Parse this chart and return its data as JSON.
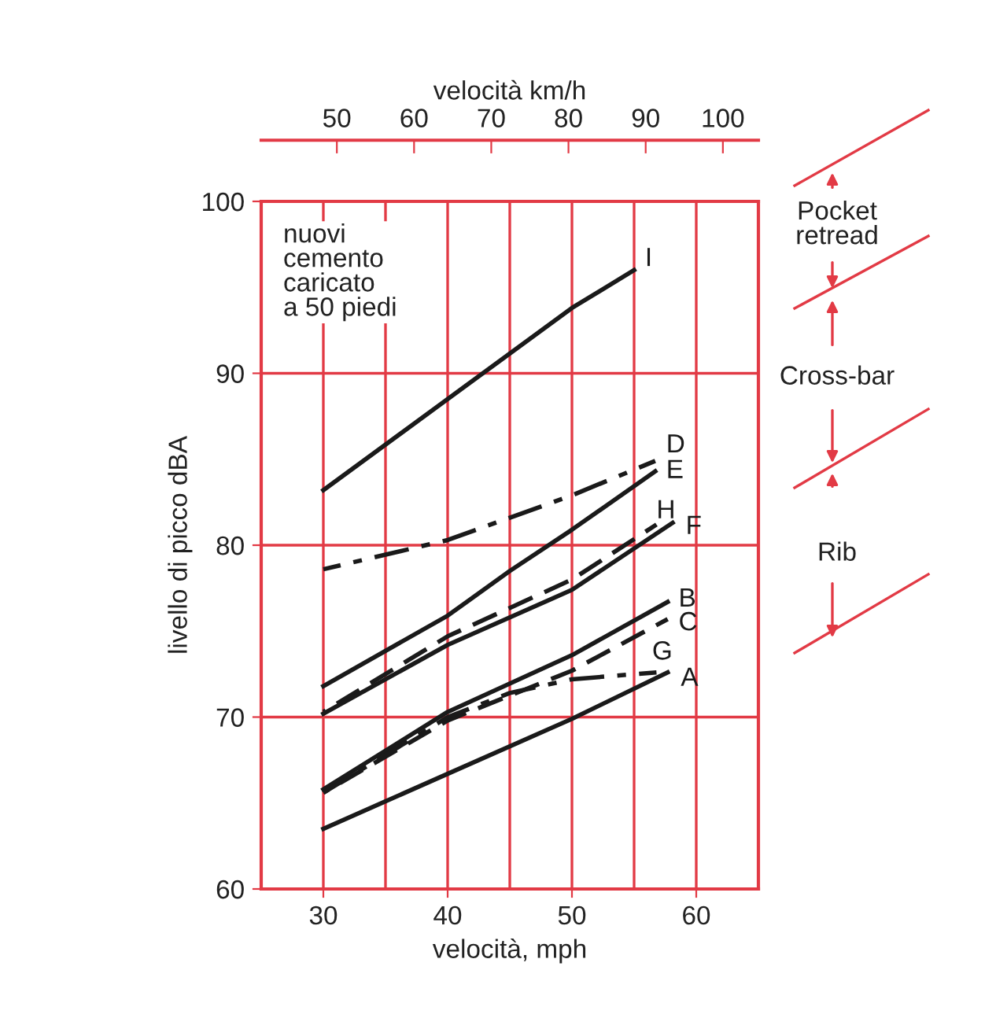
{
  "chart_data": {
    "type": "line",
    "xlabel": "velocità, mph",
    "ylabel": "livello di picco dBA",
    "x2label": "velocità km/h",
    "xlim": [
      25,
      65
    ],
    "xticks": [
      30,
      40,
      50,
      60
    ],
    "ylim": [
      60,
      100
    ],
    "yticks": [
      60,
      70,
      80,
      90,
      100
    ],
    "x2lim": [
      40.2,
      104.6
    ],
    "x2ticks": [
      50,
      60,
      70,
      80,
      90,
      100
    ],
    "grid": true,
    "legend": false,
    "marker": "none",
    "series": [
      {
        "name": "I",
        "color": "#1a1a1a",
        "line_style": "solid",
        "x": [
          30,
          40,
          50,
          55
        ],
        "values": [
          83.2,
          88.5,
          93.8,
          96
        ]
      },
      {
        "name": "D",
        "color": "#1a1a1a",
        "line_style": "dashdot",
        "x": [
          30,
          40,
          50,
          56.7
        ],
        "values": [
          78.6,
          80.3,
          82.9,
          84.9
        ]
      },
      {
        "name": "E",
        "color": "#1a1a1a",
        "line_style": "solid",
        "x": [
          30,
          40,
          45,
          50,
          56.7
        ],
        "values": [
          71.8,
          75.9,
          78.5,
          80.9,
          84.3
        ]
      },
      {
        "name": "H",
        "color": "#1a1a1a",
        "line_style": "dashed",
        "x": [
          30,
          40,
          50,
          56.8
        ],
        "values": [
          70.3,
          74.7,
          78.0,
          81.2
        ]
      },
      {
        "name": "F",
        "color": "#1a1a1a",
        "line_style": "solid",
        "x": [
          30,
          40,
          50,
          58.1
        ],
        "values": [
          70.2,
          74.2,
          77.4,
          81.3
        ]
      },
      {
        "name": "B",
        "color": "#1a1a1a",
        "line_style": "solid",
        "x": [
          30,
          40,
          50,
          57.7
        ],
        "values": [
          65.8,
          70.3,
          73.6,
          76.7
        ]
      },
      {
        "name": "C",
        "color": "#1a1a1a",
        "line_style": "dashed",
        "x": [
          30,
          40,
          50,
          57.7
        ],
        "values": [
          65.6,
          69.8,
          72.7,
          75.7
        ]
      },
      {
        "name": "G",
        "color": "#1a1a1a",
        "line_style": "dashdot",
        "x": [
          30,
          40,
          45,
          50,
          56.8
        ],
        "values": [
          65.6,
          70.0,
          71.4,
          72.2,
          72.6
        ]
      },
      {
        "name": "A",
        "color": "#1a1a1a",
        "line_style": "solid",
        "x": [
          30,
          40,
          50,
          57.7
        ],
        "values": [
          63.5,
          66.7,
          69.9,
          72.6
        ]
      }
    ],
    "annotations": [
      "nuovi\ncemento\ncaricato\na 50 piedi",
      "Pocket\nretread",
      "Cross-bar",
      "Rib"
    ]
  }
}
